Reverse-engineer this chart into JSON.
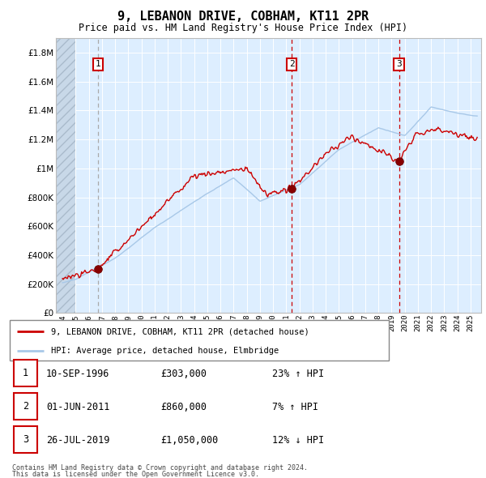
{
  "title": "9, LEBANON DRIVE, COBHAM, KT11 2PR",
  "subtitle": "Price paid vs. HM Land Registry's House Price Index (HPI)",
  "footer1": "Contains HM Land Registry data © Crown copyright and database right 2024.",
  "footer2": "This data is licensed under the Open Government Licence v3.0.",
  "legend_line1": "9, LEBANON DRIVE, COBHAM, KT11 2PR (detached house)",
  "legend_line2": "HPI: Average price, detached house, Elmbridge",
  "sale_labels": [
    "1",
    "2",
    "3"
  ],
  "sale_dates": [
    "10-SEP-1996",
    "01-JUN-2011",
    "26-JUL-2019"
  ],
  "sale_prices_str": [
    "£303,000",
    "£860,000",
    "£1,050,000"
  ],
  "sale_hpi_str": [
    "23% ↑ HPI",
    "7% ↑ HPI",
    "12% ↓ HPI"
  ],
  "sale_years": [
    1996.69,
    2011.42,
    2019.56
  ],
  "sale_prices": [
    303000,
    860000,
    1050000
  ],
  "hpi_color": "#a8c8e8",
  "price_color": "#cc0000",
  "vline_color_1": "#999999",
  "vline_color_23": "#cc0000",
  "bg_color": "#ddeeff",
  "hatch_color": "#c0c8d8",
  "grid_color": "#ffffff",
  "ylim": [
    0,
    1900000
  ],
  "yticks": [
    0,
    200000,
    400000,
    600000,
    800000,
    1000000,
    1200000,
    1400000,
    1600000,
    1800000
  ],
  "ytick_labels": [
    "£0",
    "£200K",
    "£400K",
    "£600K",
    "£800K",
    "£1M",
    "£1.2M",
    "£1.4M",
    "£1.6M",
    "£1.8M"
  ],
  "xlim_start": 1993.5,
  "xlim_end": 2025.8,
  "xticks": [
    1994,
    1995,
    1996,
    1997,
    1998,
    1999,
    2000,
    2001,
    2002,
    2003,
    2004,
    2005,
    2006,
    2007,
    2008,
    2009,
    2010,
    2011,
    2012,
    2013,
    2014,
    2015,
    2016,
    2017,
    2018,
    2019,
    2020,
    2021,
    2022,
    2023,
    2024,
    2025
  ]
}
